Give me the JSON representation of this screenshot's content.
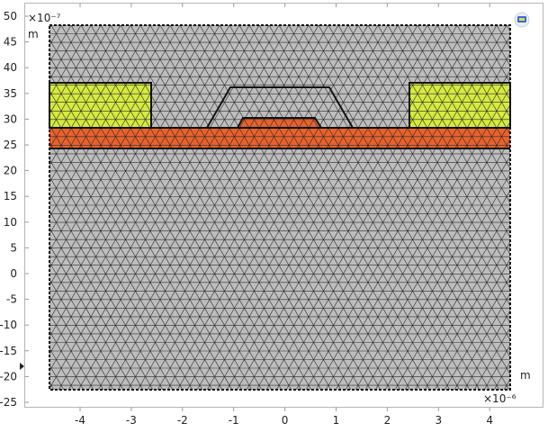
{
  "view": {
    "y_exponent_label": "×10⁻⁷",
    "y_unit_label": "m",
    "x_exponent_label": "×10⁻⁶",
    "x_unit_label": "m",
    "y_ticks": [
      "50",
      "45",
      "40",
      "35",
      "30",
      "25",
      "20",
      "15",
      "10",
      "5",
      "0",
      "-5",
      "-10",
      "-15",
      "-20",
      "-25"
    ],
    "x_ticks": [
      "-4",
      "-3",
      "-2",
      "-1",
      "0",
      "1",
      "2",
      "3",
      "4"
    ],
    "icon": "view-toggle-icon"
  },
  "colors": {
    "background": "#ffffff",
    "mesh_fill": "#bdbdbd",
    "mesh_lines": "#2b2b2b",
    "yellow_domain": "#d6ea40",
    "orange_domain": "#e8622c",
    "boundary": "#111111"
  }
}
